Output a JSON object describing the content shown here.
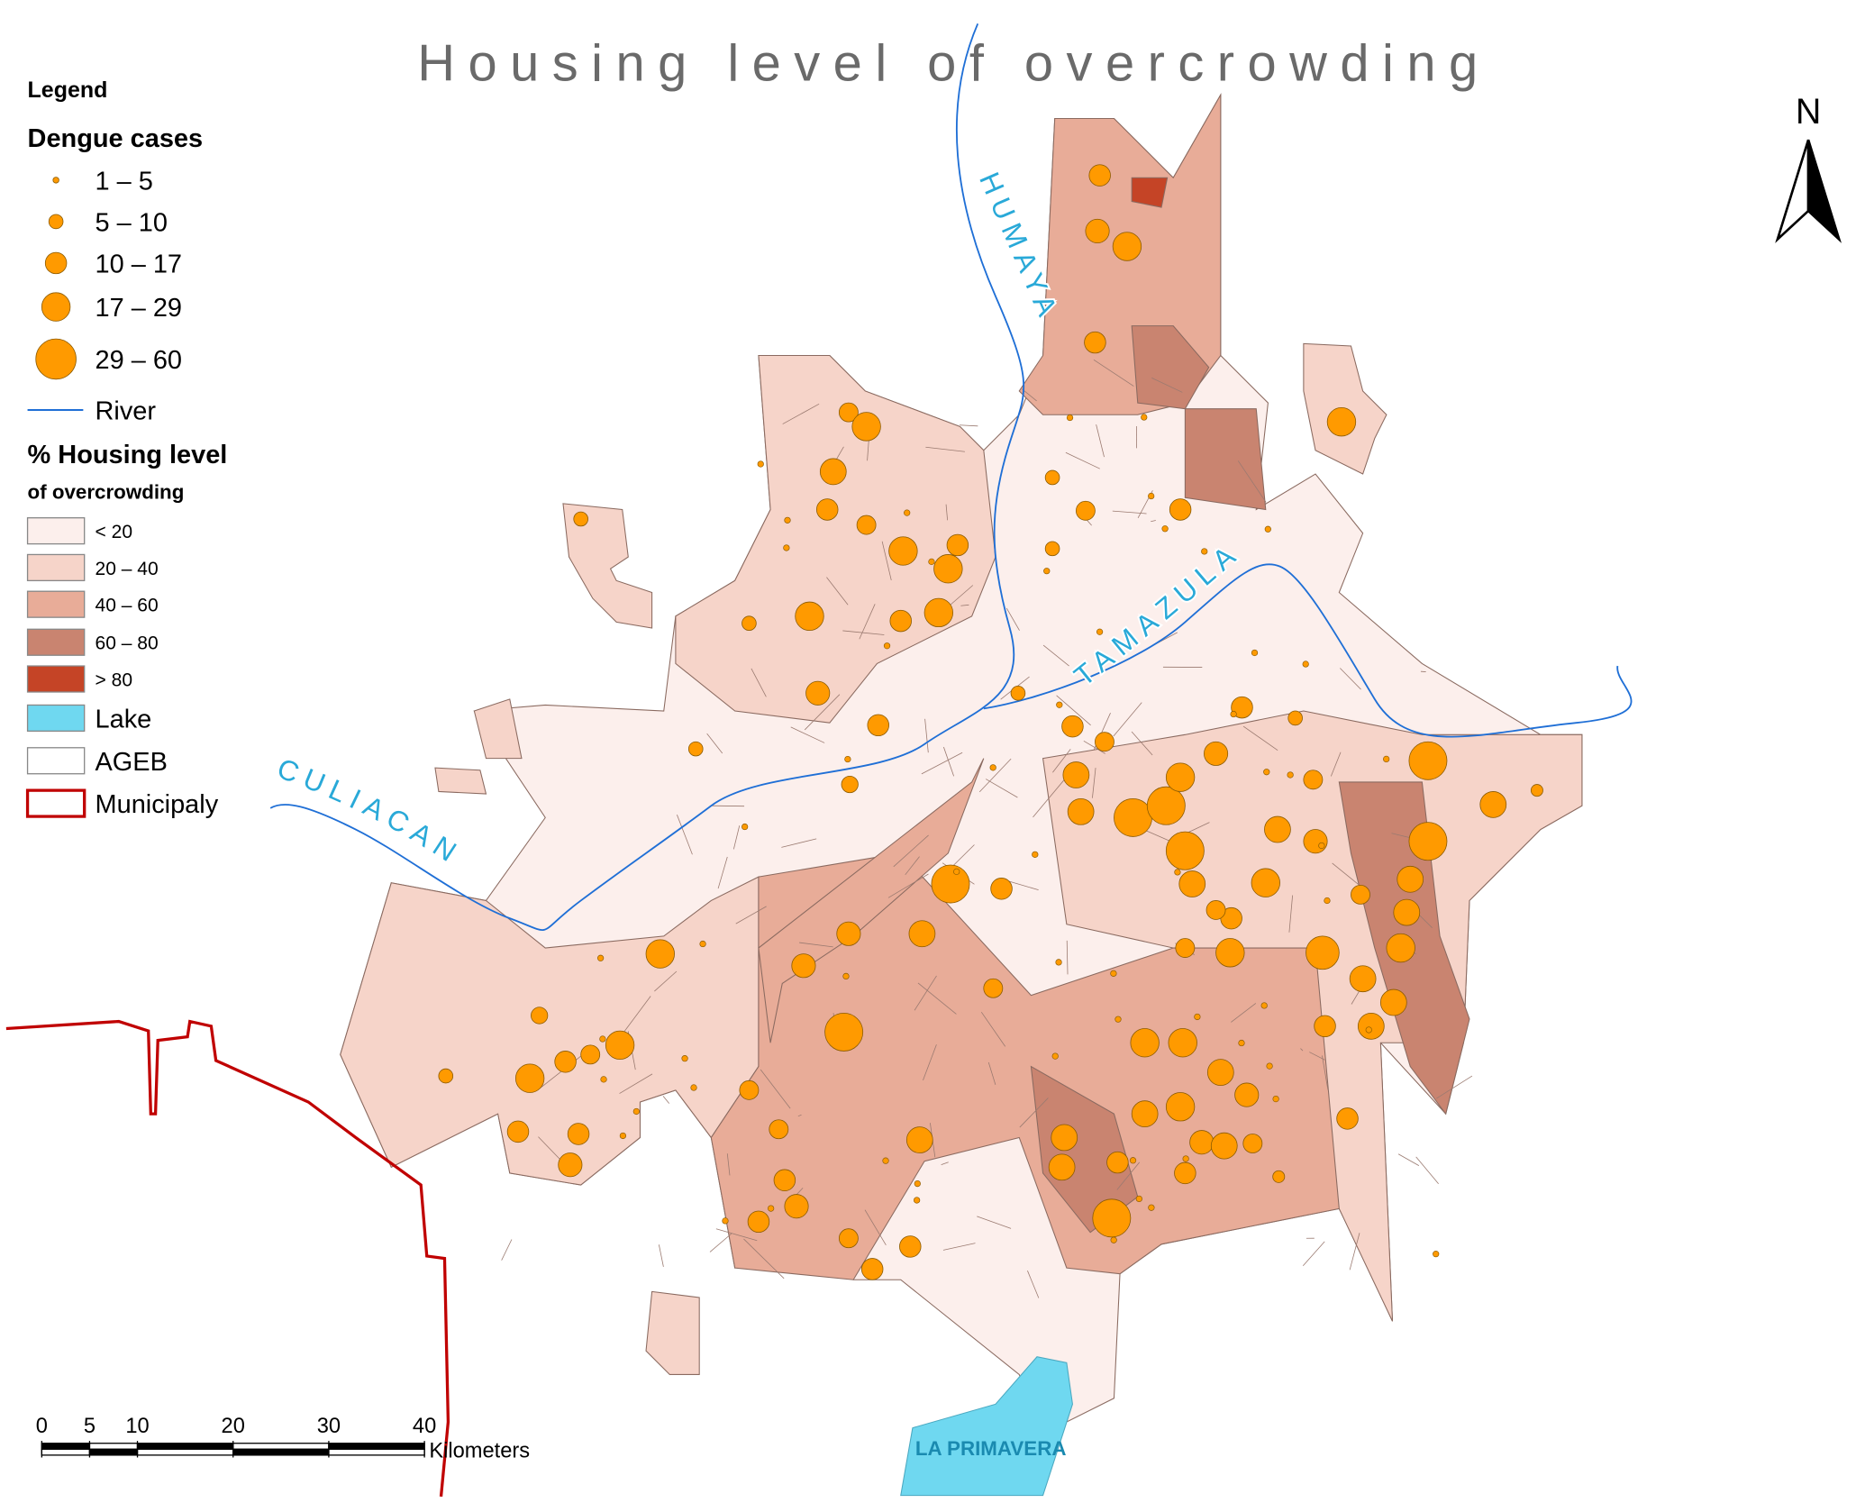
{
  "title": "Housing level of overcrowding",
  "legend": {
    "title": "Legend",
    "dengue": {
      "title": "Dengue cases",
      "color": "#ff9a00",
      "classes": [
        "1 – 5",
        "5 – 10",
        "10 – 17",
        "17 – 29",
        "29 – 60"
      ]
    },
    "river": {
      "label": "River",
      "color": "#1f6fd6"
    },
    "housing": {
      "title": "% Housing level",
      "subtitle": "of overcrowding",
      "classes": [
        {
          "label": "< 20",
          "color": "#fcefec"
        },
        {
          "label": "20 – 40",
          "color": "#f6d4c9"
        },
        {
          "label": "40 – 60",
          "color": "#e8ac98"
        },
        {
          "label": "60 – 80",
          "color": "#c98470"
        },
        {
          "label": "> 80",
          "color": "#c54426"
        }
      ]
    },
    "lake": {
      "label": "Lake",
      "color": "#6fd8f0"
    },
    "ageb": {
      "label": "AGEB"
    },
    "municipality": {
      "label": "Municipaly",
      "color": "#c00000"
    }
  },
  "map_labels": {
    "rivers": [
      "HUMAYA",
      "TAMAZULA",
      "CULIACAN"
    ],
    "lake": "LA PRIMAVERA"
  },
  "north": "N",
  "scale_bar": {
    "ticks": [
      0,
      5,
      10,
      20,
      30,
      40
    ],
    "unit": "Kilometers"
  }
}
